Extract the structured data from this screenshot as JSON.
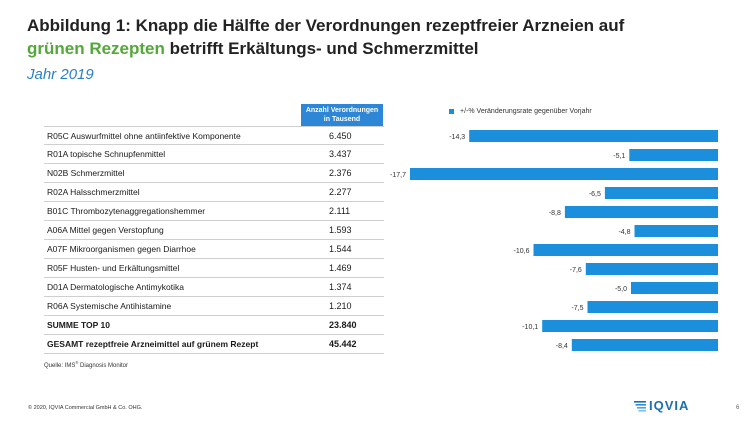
{
  "header": {
    "title_part1": "Abbildung 1: Knapp die Hälfte der Verordnungen rezeptfreier Arzneien auf",
    "title_green": "grünen Rezepten",
    "title_part2": "betrifft Erkältungs- und Schmerzmittel",
    "subtitle": "Jahr 2019"
  },
  "table": {
    "column_header_line1": "Anzahl Verordnungen",
    "column_header_line2": "in Tausend"
  },
  "legend": {
    "label": "+/-% Veränderungsrate gegenüber Vorjahr"
  },
  "colors": {
    "bar": "#1b8fdc",
    "header_bg": "#2e86d6",
    "title_green": "#53a83a",
    "subtitle_blue": "#2b7fc8"
  },
  "chart_data": {
    "type": "bar",
    "orientation": "horizontal",
    "value_axis": "percent change vs. previous year",
    "xlim": [
      -17.7,
      0
    ],
    "categories": [
      "R05C Auswurfmittel ohne antiinfektive Komponente",
      "R01A topische Schnupfenmittel",
      "N02B Schmerzmittel",
      "R02A Halsschmerzmittel",
      "B01C Thrombozytenaggregationshemmer",
      "A06A Mittel gegen Verstopfung",
      "A07F Mikroorganismen gegen Diarrhoe",
      "R05F Husten- und Erkältungsmittel",
      "D01A Dermatologische Antimykotika",
      "R06A Systemische Antihistamine",
      "SUMME TOP 10",
      "GESAMT rezeptfreie Arzneimittel auf grünem Rezept"
    ],
    "prescriptions": [
      "6.450",
      "3.437",
      "2.376",
      "2.277",
      "2.111",
      "1.593",
      "1.544",
      "1.469",
      "1.374",
      "1.210",
      "23.840",
      "45.442"
    ],
    "values": [
      -14.3,
      -5.1,
      -17.7,
      -6.5,
      -8.8,
      -4.8,
      -10.6,
      -7.6,
      -5.0,
      -7.5,
      -10.1,
      -8.4
    ],
    "value_labels": [
      "-14,3",
      "-5,1",
      "-17,7",
      "-6,5",
      "-8,8",
      "-4,8",
      "-10,6",
      "-7,6",
      "-5,0",
      "-7,5",
      "-10,1",
      "-8,4"
    ],
    "bold_rows": [
      10,
      11
    ]
  },
  "footer": {
    "source_prefix": "Quelle: IMS",
    "source_reg": "®",
    "source_suffix": " Diagnosis Monitor",
    "copyright": "© 2020, IQVIA Commercial GmbH & Co. OHG.",
    "logo_text": "IQVIA",
    "page_number": "6"
  }
}
